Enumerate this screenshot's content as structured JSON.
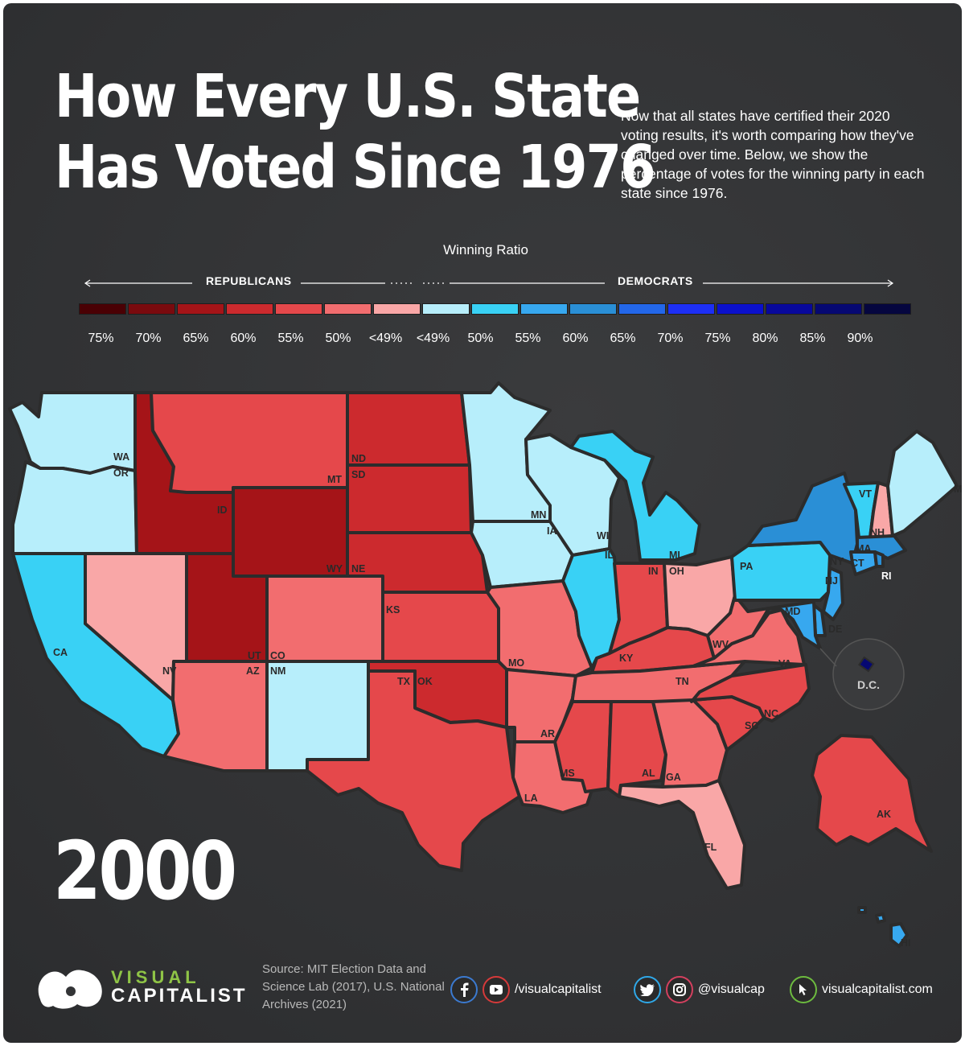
{
  "title": {
    "line1": "How Every U.S. State",
    "line2": "Has Voted Since 1976"
  },
  "intro": "Now that all states have certified their 2020 voting results, it's worth comparing how they've changed over time. Below, we show the percentage of votes for the winning party in each state since 1976.",
  "legend": {
    "title": "Winning Ratio",
    "left_party": "REPUBLICANS",
    "right_party": "DEMOCRATS",
    "labels": [
      "75%",
      "70%",
      "65%",
      "60%",
      "55%",
      "50%",
      "<49%",
      "<49%",
      "50%",
      "55%",
      "60%",
      "65%",
      "70%",
      "75%",
      "80%",
      "85%",
      "90%"
    ],
    "colors": [
      "#4a0004",
      "#7a0a0e",
      "#a51418",
      "#cc2a2e",
      "#e5484b",
      "#f26d6f",
      "#f9a7a7",
      "#b7eefb",
      "#39d1f5",
      "#37a8ef",
      "#2a8fd6",
      "#2367e9",
      "#1d2ff5",
      "#0b10cc",
      "#08089c",
      "#060872",
      "#05063f"
    ]
  },
  "map": {
    "year": "2000",
    "states": [
      {
        "code": "WA",
        "lean": "<49%",
        "party": "D"
      },
      {
        "code": "OR",
        "lean": "<49%",
        "party": "D"
      },
      {
        "code": "CA",
        "lean": "50%",
        "party": "D"
      },
      {
        "code": "NV",
        "lean": "<49%",
        "party": "R"
      },
      {
        "code": "ID",
        "lean": "65%",
        "party": "R"
      },
      {
        "code": "MT",
        "lean": "55%",
        "party": "R"
      },
      {
        "code": "WY",
        "lean": "65%",
        "party": "R"
      },
      {
        "code": "UT",
        "lean": "65%",
        "party": "R"
      },
      {
        "code": "AZ",
        "lean": "50%",
        "party": "R"
      },
      {
        "code": "CO",
        "lean": "50%",
        "party": "R"
      },
      {
        "code": "NM",
        "lean": "<49%",
        "party": "D"
      },
      {
        "code": "ND",
        "lean": "60%",
        "party": "R"
      },
      {
        "code": "SD",
        "lean": "60%",
        "party": "R"
      },
      {
        "code": "NE",
        "lean": "60%",
        "party": "R"
      },
      {
        "code": "KS",
        "lean": "55%",
        "party": "R"
      },
      {
        "code": "OK",
        "lean": "60%",
        "party": "R"
      },
      {
        "code": "TX",
        "lean": "55%",
        "party": "R"
      },
      {
        "code": "MN",
        "lean": "<49%",
        "party": "D"
      },
      {
        "code": "IA",
        "lean": "<49%",
        "party": "D"
      },
      {
        "code": "MO",
        "lean": "50%",
        "party": "R"
      },
      {
        "code": "AR",
        "lean": "50%",
        "party": "R"
      },
      {
        "code": "LA",
        "lean": "50%",
        "party": "R"
      },
      {
        "code": "WI",
        "lean": "<49%",
        "party": "D"
      },
      {
        "code": "IL",
        "lean": "50%",
        "party": "D"
      },
      {
        "code": "MI",
        "lean": "50%",
        "party": "D"
      },
      {
        "code": "IN",
        "lean": "55%",
        "party": "R"
      },
      {
        "code": "OH",
        "lean": "<49%",
        "party": "R"
      },
      {
        "code": "KY",
        "lean": "55%",
        "party": "R"
      },
      {
        "code": "TN",
        "lean": "50%",
        "party": "R"
      },
      {
        "code": "MS",
        "lean": "55%",
        "party": "R"
      },
      {
        "code": "AL",
        "lean": "55%",
        "party": "R"
      },
      {
        "code": "GA",
        "lean": "50%",
        "party": "R"
      },
      {
        "code": "FL",
        "lean": "<49%",
        "party": "R"
      },
      {
        "code": "SC",
        "lean": "55%",
        "party": "R"
      },
      {
        "code": "NC",
        "lean": "55%",
        "party": "R"
      },
      {
        "code": "VA",
        "lean": "50%",
        "party": "R"
      },
      {
        "code": "WV",
        "lean": "50%",
        "party": "R"
      },
      {
        "code": "PA",
        "lean": "50%",
        "party": "D"
      },
      {
        "code": "NY",
        "lean": "60%",
        "party": "D"
      },
      {
        "code": "VT",
        "lean": "50%",
        "party": "D"
      },
      {
        "code": "NH",
        "lean": "<49%",
        "party": "R"
      },
      {
        "code": "ME",
        "lean": "<49%",
        "party": "D"
      },
      {
        "code": "MA",
        "lean": "60%",
        "party": "D"
      },
      {
        "code": "CT",
        "lean": "55%",
        "party": "D"
      },
      {
        "code": "RI",
        "lean": "60%",
        "party": "D"
      },
      {
        "code": "NJ",
        "lean": "55%",
        "party": "D"
      },
      {
        "code": "DE",
        "lean": "55%",
        "party": "D"
      },
      {
        "code": "MD",
        "lean": "55%",
        "party": "D"
      },
      {
        "code": "DC",
        "label": "D.C.",
        "lean": "85%",
        "party": "D"
      },
      {
        "code": "AK",
        "lean": "55%",
        "party": "R"
      },
      {
        "code": "HI",
        "lean": "55%",
        "party": "D"
      }
    ]
  },
  "footer": {
    "brand_top": "VISUAL",
    "brand_bottom": "CAPITALIST",
    "source": "Source: MIT Election Data and Science Lab (2017), U.S. National Archives (2021)",
    "handle_fb_yt": "/visualcapitalist",
    "handle_tw_ig": "@visualcap",
    "website": "visualcapitalist.com",
    "icons": [
      "facebook-icon",
      "youtube-icon",
      "twitter-icon",
      "instagram-icon",
      "cursor-icon"
    ]
  }
}
